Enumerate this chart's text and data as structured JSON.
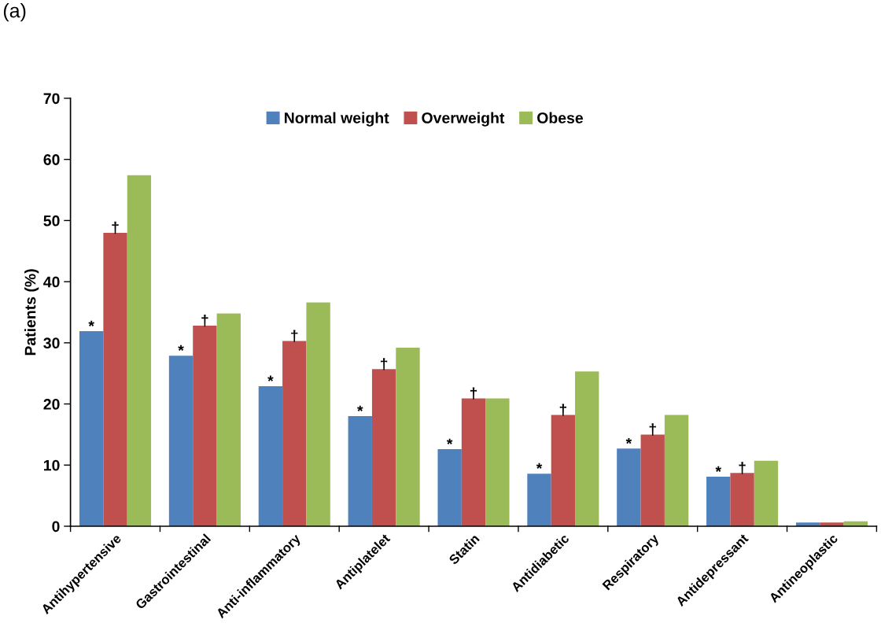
{
  "chart_data": {
    "type": "bar",
    "title": "(a)",
    "ylabel": "Patients (%)",
    "categories": [
      "Antihypertensive",
      "Gastrointestinal",
      "Anti-inflammatory",
      "Antiplatelet",
      "Statin",
      "Antidiabetic",
      "Respiratory",
      "Antidepressant",
      "Antineoplastic"
    ],
    "series": [
      {
        "name": "Normal weight",
        "color": "#4f81bd",
        "values": [
          31.9,
          27.9,
          22.9,
          18.0,
          12.6,
          8.6,
          12.7,
          8.1,
          0.6
        ]
      },
      {
        "name": "Overweight",
        "color": "#c0504d",
        "values": [
          48.0,
          32.8,
          30.3,
          25.7,
          20.9,
          18.2,
          15.0,
          8.7,
          0.6
        ]
      },
      {
        "name": "Obese",
        "color": "#9bbb59",
        "values": [
          57.4,
          34.8,
          36.6,
          29.2,
          20.9,
          25.3,
          18.2,
          10.7,
          0.8
        ]
      }
    ],
    "annotations": [
      "*",
      {
        "text": "†",
        "x": "Antihypertensive",
        "y": 48.0
      },
      "*",
      {
        "text": "†",
        "x": "Gastrointestinal",
        "y": 32.8
      },
      "*",
      {
        "text": "†",
        "x": "Anti-inflammatory",
        "y": 30.3
      },
      "*",
      {
        "text": "†",
        "x": "Antiplatelet",
        "y": 25.7
      },
      "*",
      {
        "text": "†",
        "x": "Statin",
        "y": 20.9
      },
      "*",
      {
        "text": "†",
        "x": "Antidiabetic",
        "y": 18.2
      },
      "*",
      {
        "text": "†",
        "x": "Respiratory",
        "y": 15.0
      },
      "*",
      {
        "text": "†",
        "x": "Antidepressant",
        "y": 8.7
      }
    ],
    "ylim": [
      0,
      70
    ],
    "yticks": [
      0,
      10,
      20,
      30,
      40,
      50,
      60,
      70
    ],
    "legend": "top",
    "grid": false
  }
}
